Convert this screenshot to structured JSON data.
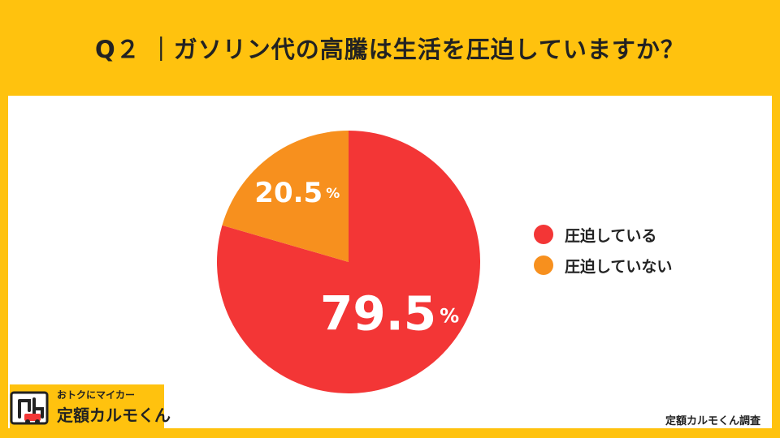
{
  "title": "Q２ ｜ガソリン代の高騰は生活を圧迫していますか？",
  "chart_data": {
    "type": "pie",
    "slices": [
      {
        "label": "圧迫している",
        "value": 79.5,
        "display": "79.5",
        "unit": "%",
        "color": "#F33636"
      },
      {
        "label": "圧迫していない",
        "value": 20.5,
        "display": "20.5",
        "unit": "%",
        "color": "#F7901E"
      }
    ],
    "legend_position": "right"
  },
  "logo": {
    "tagline": "おトクにマイカー",
    "name": "定額カルモくん",
    "icon": "karumo-car-logo-icon"
  },
  "source": "定額カルモくん調査",
  "colors": {
    "background": "#FFC20E",
    "card": "#FFFFFF",
    "text": "#222222"
  }
}
